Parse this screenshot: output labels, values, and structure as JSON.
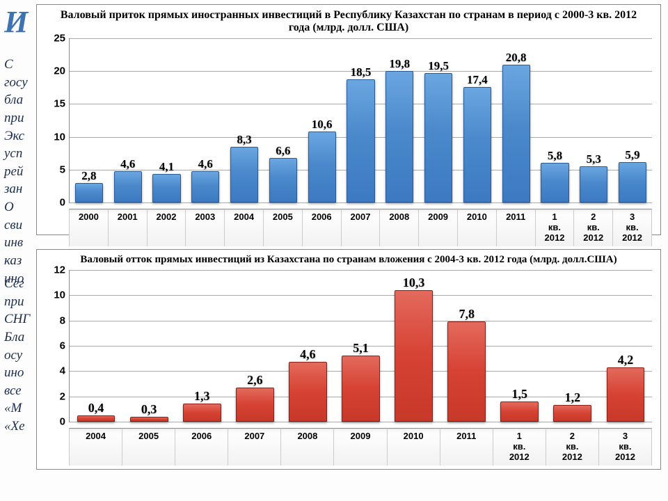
{
  "background": {
    "title": "И",
    "p1": "С\nгосу\nбла\nпри\nЭкс\nусп\nрей\nзан\nО\nсви\nинв\nказ\nино",
    "p2": "Сег\nпри\nСНГ\nБла\nосу\nино\nвсе\n«М\n«Хе"
  },
  "chart1": {
    "type": "bar",
    "title": "Валовый приток прямых иностранных инвестиций в Республику Казахстан по странам в период с 2000-3 кв. 2012 года (млрд. долл. США)",
    "categories": [
      "2000",
      "2001",
      "2002",
      "2003",
      "2004",
      "2005",
      "2006",
      "2007",
      "2008",
      "2009",
      "2010",
      "2011",
      "1 кв. 2012",
      "2 кв. 2012",
      "3 кв. 2012"
    ],
    "value_labels": [
      "2,8",
      "4,6",
      "4,1",
      "4,6",
      "8,3",
      "6,6",
      "10,6",
      "18,5",
      "19,8",
      "19,5",
      "17,4",
      "20,8",
      "5,8",
      "5,3",
      "5,9"
    ],
    "values": [
      2.8,
      4.6,
      4.1,
      4.6,
      8.3,
      6.6,
      10.6,
      18.5,
      19.8,
      19.5,
      17.4,
      20.8,
      5.8,
      5.3,
      5.9
    ],
    "bar_color": "#4b89cc",
    "ylim": [
      0,
      25
    ],
    "ytick_step": 5,
    "value_fontsize": 17,
    "grid_color": "#aaaaaa",
    "background_color": "#ffffff"
  },
  "chart2": {
    "type": "bar",
    "title": "Валовый отток прямых инвестиций из Казахстана по странам вложения с 2004-3 кв. 2012 года (млрд. долл.США)",
    "categories": [
      "2004",
      "2005",
      "2006",
      "2007",
      "2008",
      "2009",
      "2010",
      "2011",
      "1 кв. 2012",
      "2 кв. 2012",
      "3 кв. 2012"
    ],
    "value_labels": [
      "0,4",
      "0,3",
      "1,3",
      "2,6",
      "4,6",
      "5,1",
      "10,3",
      "7,8",
      "1,5",
      "1,2",
      "4,2"
    ],
    "values": [
      0.4,
      0.3,
      1.3,
      2.6,
      4.6,
      5.1,
      10.3,
      7.8,
      1.5,
      1.2,
      4.2
    ],
    "bar_color": "#d64233",
    "ylim": [
      0,
      12
    ],
    "ytick_step": 2,
    "value_fontsize": 18,
    "grid_color": "#aaaaaa",
    "background_color": "#ffffff"
  }
}
